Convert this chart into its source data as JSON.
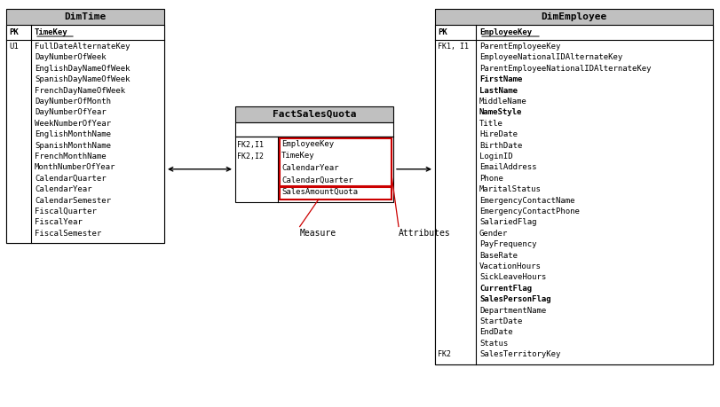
{
  "dimtime": {
    "title": "DimTime",
    "fields": [
      "FullDateAlternateKey",
      "DayNumberOfWeek",
      "EnglishDayNameOfWeek",
      "SpanishDayNameOfWeek",
      "FrenchDayNameOfWeek",
      "DayNumberOfMonth",
      "DayNumberOfYear",
      "WeekNumberOfYear",
      "EnglishMonthName",
      "SpanishMonthName",
      "FrenchMonthName",
      "MonthNumberOfYear",
      "CalendarQuarter",
      "CalendarYear",
      "CalendarSemester",
      "FiscalQuarter",
      "FiscalYear",
      "FiscalSemester"
    ]
  },
  "dimemployee": {
    "title": "DimEmployee",
    "fields": [
      {
        "text": "ParentEmployeeKey",
        "bold": false
      },
      {
        "text": "EmployeeNationalIDAlternateKey",
        "bold": false
      },
      {
        "text": "ParentEmployeeNationalIDAlternateKey",
        "bold": false
      },
      {
        "text": "FirstName",
        "bold": true
      },
      {
        "text": "LastName",
        "bold": true
      },
      {
        "text": "MiddleName",
        "bold": false
      },
      {
        "text": "NameStyle",
        "bold": true
      },
      {
        "text": "Title",
        "bold": false
      },
      {
        "text": "HireDate",
        "bold": false
      },
      {
        "text": "BirthDate",
        "bold": false
      },
      {
        "text": "LoginID",
        "bold": false
      },
      {
        "text": "EmailAddress",
        "bold": false
      },
      {
        "text": "Phone",
        "bold": false
      },
      {
        "text": "MaritalStatus",
        "bold": false
      },
      {
        "text": "EmergencyContactName",
        "bold": false
      },
      {
        "text": "EmergencyContactPhone",
        "bold": false
      },
      {
        "text": "SalariedFlag",
        "bold": false
      },
      {
        "text": "Gender",
        "bold": false
      },
      {
        "text": "PayFrequency",
        "bold": false
      },
      {
        "text": "BaseRate",
        "bold": false
      },
      {
        "text": "VacationHours",
        "bold": false
      },
      {
        "text": "SickLeaveHours",
        "bold": false
      },
      {
        "text": "CurrentFlag",
        "bold": true
      },
      {
        "text": "SalesPersonFlag",
        "bold": true
      },
      {
        "text": "DepartmentName",
        "bold": false
      },
      {
        "text": "StartDate",
        "bold": false
      },
      {
        "text": "EndDate",
        "bold": false
      },
      {
        "text": "Status",
        "bold": false
      },
      {
        "text": "SalesTerritoryKey",
        "bold": false
      }
    ],
    "fk2_field_index": 28
  },
  "fact": {
    "title": "FactSalesQuota",
    "fields": [
      "EmployeeKey",
      "TimeKey",
      "CalendarYear",
      "CalendarQuarter",
      "SalesAmountQuota"
    ]
  },
  "bg_color": "#ffffff",
  "header_bg": "#c0c0c0",
  "box_edge": "#000000",
  "red_box": "#cc0000",
  "font_size": 6.5,
  "title_font_size": 8.0
}
